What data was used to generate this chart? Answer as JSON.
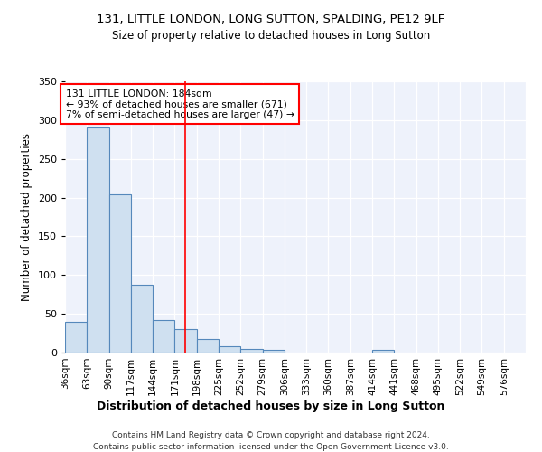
{
  "title1": "131, LITTLE LONDON, LONG SUTTON, SPALDING, PE12 9LF",
  "title2": "Size of property relative to detached houses in Long Sutton",
  "xlabel": "Distribution of detached houses by size in Long Sutton",
  "ylabel": "Number of detached properties",
  "bin_labels": [
    "36sqm",
    "63sqm",
    "90sqm",
    "117sqm",
    "144sqm",
    "171sqm",
    "198sqm",
    "225sqm",
    "252sqm",
    "279sqm",
    "306sqm",
    "333sqm",
    "360sqm",
    "387sqm",
    "414sqm",
    "441sqm",
    "468sqm",
    "495sqm",
    "522sqm",
    "549sqm",
    "576sqm"
  ],
  "bin_edges": [
    36,
    63,
    90,
    117,
    144,
    171,
    198,
    225,
    252,
    279,
    306,
    333,
    360,
    387,
    414,
    441,
    468,
    495,
    522,
    549,
    576
  ],
  "bar_heights": [
    40,
    291,
    204,
    88,
    42,
    30,
    17,
    8,
    5,
    3,
    0,
    0,
    0,
    0,
    4,
    0,
    0,
    0,
    0,
    0
  ],
  "bar_color": "#cfe0f0",
  "bar_edge_color": "#5588bb",
  "property_line_x": 184,
  "annotation_text": "131 LITTLE LONDON: 184sqm\n← 93% of detached houses are smaller (671)\n7% of semi-detached houses are larger (47) →",
  "annotation_box_color": "white",
  "annotation_box_edge_color": "red",
  "vline_color": "red",
  "footer1": "Contains HM Land Registry data © Crown copyright and database right 2024.",
  "footer2": "Contains public sector information licensed under the Open Government Licence v3.0.",
  "background_color": "#eef2fb",
  "ylim": [
    0,
    350
  ],
  "yticks": [
    0,
    50,
    100,
    150,
    200,
    250,
    300,
    350
  ]
}
